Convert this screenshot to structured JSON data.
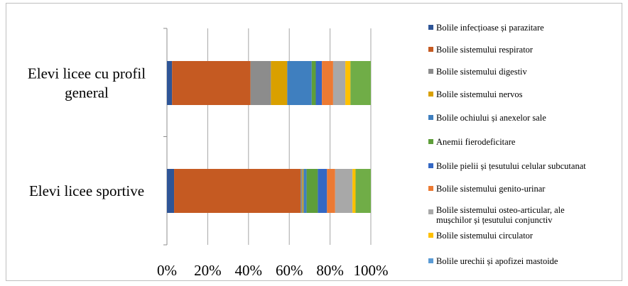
{
  "chart_data": {
    "type": "bar",
    "orientation": "horizontal",
    "stacked": "percent",
    "categories": [
      "Elevi licee cu profil general",
      "Elevi licee sportive"
    ],
    "category_label_lines": [
      [
        "Elevi licee cu profil",
        "general"
      ],
      [
        "Elevi licee sportive"
      ]
    ],
    "xlim": [
      0,
      100
    ],
    "x_ticks": [
      "0%",
      "20%",
      "40%",
      "60%",
      "80%",
      "100%"
    ],
    "grid": "vertical",
    "legend_position": "right",
    "series": [
      {
        "name": "Bolile infecțioase și parazitare",
        "color": "#2e5597",
        "values": [
          2.5,
          3.5
        ]
      },
      {
        "name": "Bolile sistemului respirator",
        "color": "#c55a22",
        "values": [
          38.5,
          62
        ]
      },
      {
        "name": "Bolile sistemului digestiv",
        "color": "#8c8c8c",
        "values": [
          10,
          1
        ]
      },
      {
        "name": "Bolile sistemului nervos",
        "color": "#d9a000",
        "values": [
          8,
          0.5
        ]
      },
      {
        "name": "Bolile ochiului și anexelor sale",
        "color": "#3f7fbf",
        "values": [
          12,
          1.5
        ]
      },
      {
        "name": "Anemii fierodeficitare",
        "color": "#5e9e3a",
        "values": [
          2,
          5.5
        ]
      },
      {
        "name": "Bolile pielii și țesutului celular subcutanat",
        "color": "#3468c4",
        "values": [
          3,
          4.5
        ]
      },
      {
        "name": "Bolile sistemului genito-urinar",
        "color": "#ec7a33",
        "values": [
          5.5,
          4
        ]
      },
      {
        "name": "Bolile sistemului osteo-articular, ale mușchilor și țesutului conjunctiv",
        "color": "#a8a8a8",
        "values": [
          6,
          8.5
        ]
      },
      {
        "name": "Bolile sistemului circulator",
        "color": "#ffc000",
        "values": [
          2.5,
          1.5
        ]
      },
      {
        "name": "Bolile urechii și apofizei mastoide",
        "color": "#5b9bd5",
        "values": [
          0,
          0
        ]
      },
      {
        "name": "",
        "color": "#70ad47",
        "values": [
          10,
          7.5
        ]
      }
    ]
  }
}
